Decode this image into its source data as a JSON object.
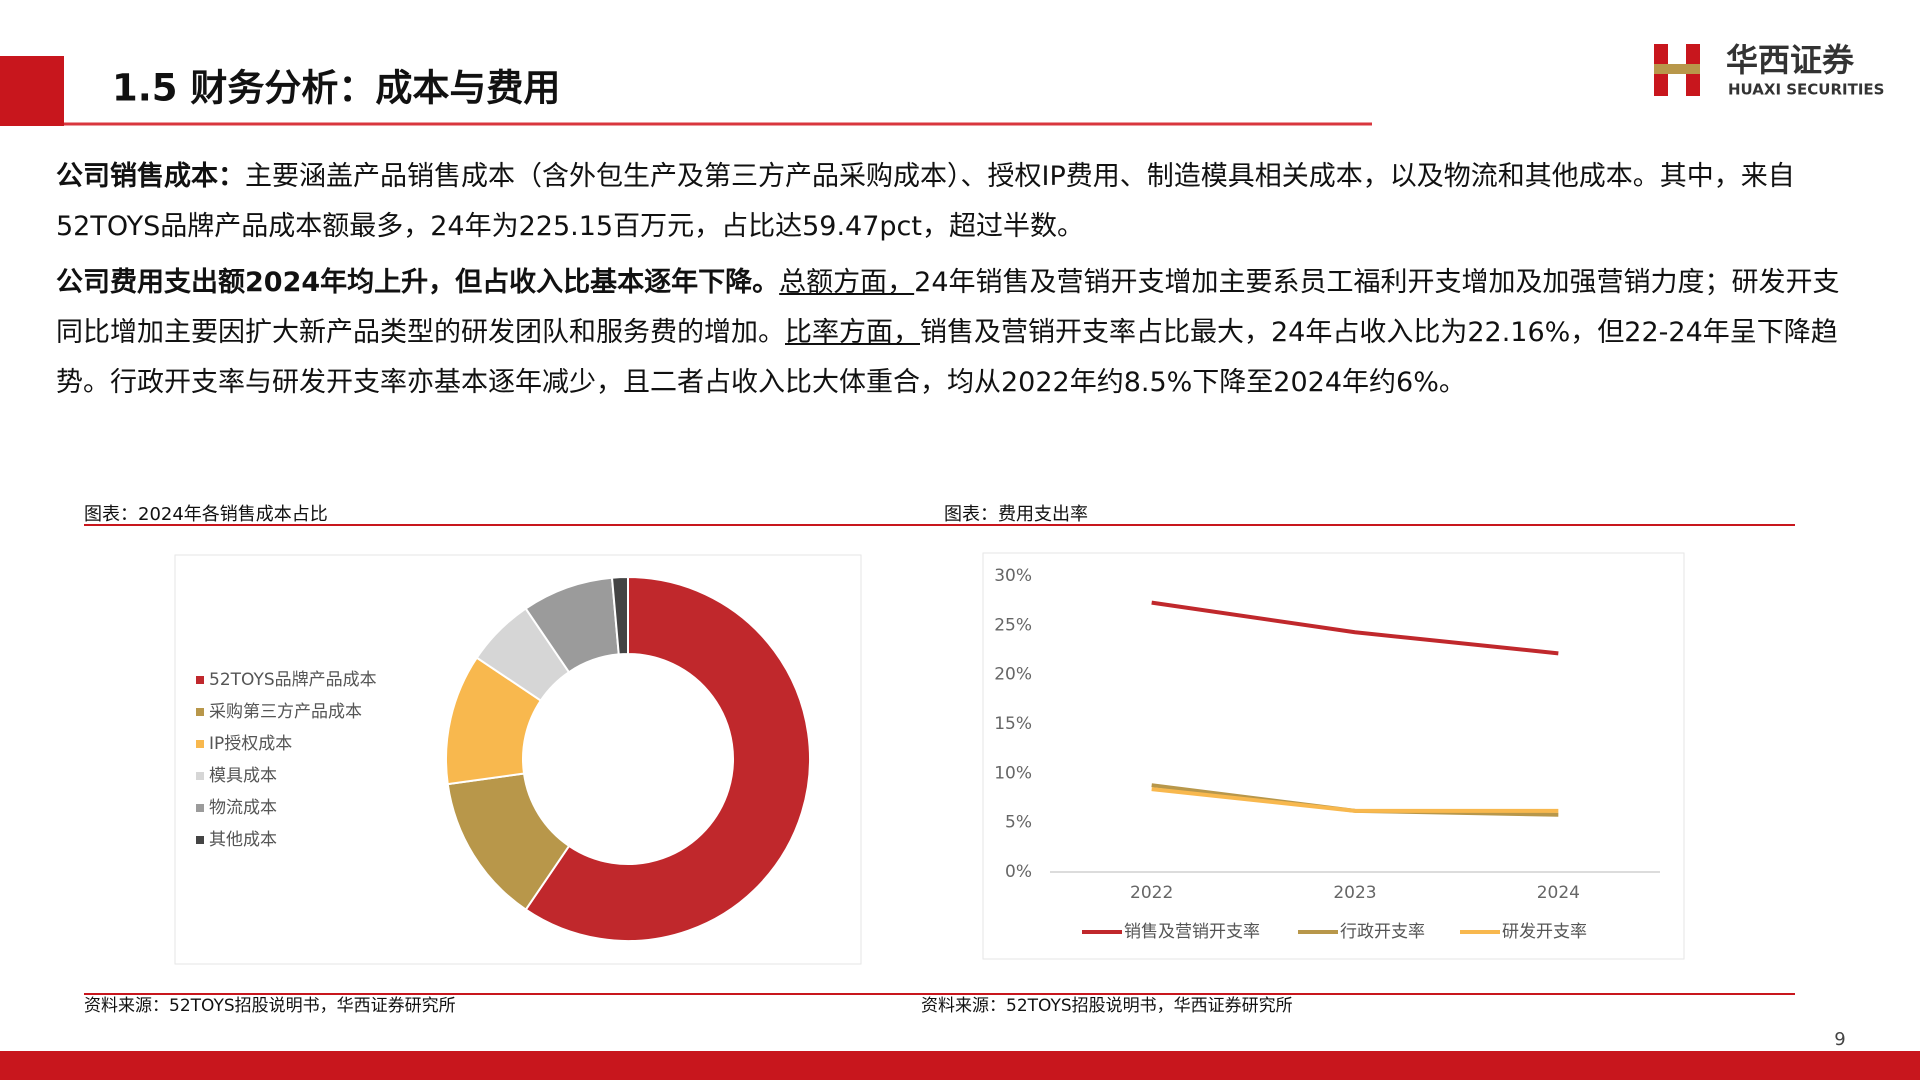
{
  "header": {
    "title": "1.5 财务分析：成本与费用",
    "logo_cn": "华西证券",
    "logo_en": "HUAXI SECURITIES"
  },
  "paragraphs": [
    [
      {
        "text": "公司销售成本：",
        "bold": true
      },
      {
        "text": "主要涵盖产品销售成本（含外包生产及第三方产品采购成本）、授权IP费用、制造模具相关成本，以及物流和其他成本。其中，来自52TOYS品牌产品成本额最多，24年为225.15百万元，占比达59.47pct，超过半数。"
      }
    ],
    [
      {
        "text": "公司费用支出额2024年均上升，但占收入比基本逐年下降。",
        "bold": true
      },
      {
        "text": "总额方面，",
        "underline": true
      },
      {
        "text": "24年销售及营销开支增加主要系员工福利开支增加及加强营销力度；研发开支同比增加主要因扩大新产品类型的研发团队和服务费的增加。"
      },
      {
        "text": "比率方面，",
        "underline": true
      },
      {
        "text": "销售及营销开支率占比最大，24年占收入比为22.16%，但22-24年呈下降趋势。行政开支率与研发开支率亦基本逐年减少，且二者占收入比大体重合，均从2022年约8.5%下降至2024年约6%。"
      }
    ]
  ],
  "chart_data": [
    {
      "type": "pie",
      "title": "图表：2024年各销售成本占比",
      "source": "资料来源：52TOYS招股说明书，华西证券研究所",
      "categories": [
        "52TOYS品牌产品成本",
        "采购第三方产品成本",
        "IP授权成本",
        "模具成本",
        "物流成本",
        "其他成本"
      ],
      "values": [
        59.47,
        13.3,
        11.6,
        6.1,
        8.1,
        1.4
      ],
      "colors": [
        "#c0282c",
        "#b8974a",
        "#f8b84e",
        "#d6d6d6",
        "#9b9b9b",
        "#444444"
      ]
    },
    {
      "type": "line",
      "title": "图表：费用支出率",
      "source": "资料来源：52TOYS招股说明书，华西证券研究所",
      "categories": [
        "2022",
        "2023",
        "2024"
      ],
      "series": [
        {
          "name": "销售及营销开支率",
          "color": "#c0282c",
          "values": [
            27.3,
            24.3,
            22.16
          ]
        },
        {
          "name": "行政开支率",
          "color": "#b8974a",
          "values": [
            8.8,
            6.2,
            5.8
          ]
        },
        {
          "name": "研发开支率",
          "color": "#f8b84e",
          "values": [
            8.4,
            6.2,
            6.2
          ]
        }
      ],
      "ylim": [
        0,
        30
      ],
      "yticks": [
        {
          "value": 0,
          "label": "0%"
        },
        {
          "value": 5,
          "label": "5%"
        },
        {
          "value": 10,
          "label": "10%"
        },
        {
          "value": 15,
          "label": "15%"
        },
        {
          "value": 20,
          "label": "20%"
        },
        {
          "value": 25,
          "label": "25%"
        },
        {
          "value": 30,
          "label": "30%"
        }
      ]
    }
  ],
  "page_number": "9"
}
